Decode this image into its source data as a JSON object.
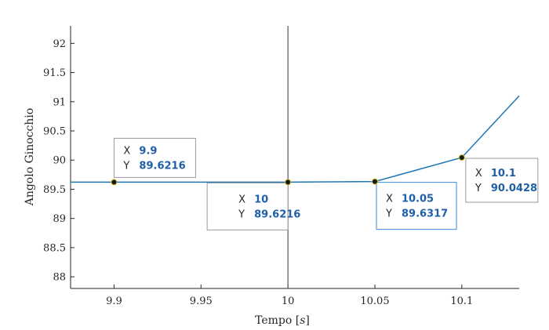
{
  "chart_data": {
    "type": "line",
    "title": "",
    "xlabel": "Tempo [s]",
    "xlabel_parts": {
      "prefix": "Tempo [",
      "unit": "s",
      "suffix": "]"
    },
    "ylabel": "Angolo Ginocchio",
    "xlim": [
      9.875,
      10.133
    ],
    "ylim": [
      87.8,
      92.3
    ],
    "x_ticks": [
      "9.9",
      "9.95",
      "10",
      "10.05",
      "10.1"
    ],
    "x_tick_values": [
      9.9,
      9.95,
      10.0,
      10.05,
      10.1
    ],
    "y_ticks": [
      "88",
      "88.5",
      "89",
      "89.5",
      "90",
      "90.5",
      "91",
      "91.5",
      "92"
    ],
    "y_tick_values": [
      88,
      88.5,
      89,
      89.5,
      90,
      90.5,
      91,
      91.5,
      92
    ],
    "grid": false,
    "line_color": "#1f77b4",
    "series": [
      {
        "x": [
          9.875,
          9.9,
          9.95,
          10.0,
          10.05,
          10.1,
          10.133
        ],
        "values": [
          89.6216,
          89.6216,
          89.6216,
          89.6216,
          89.6317,
          90.0428,
          91.1
        ]
      }
    ],
    "vertical_line_x": 10.0,
    "datatips": [
      {
        "x_key": "X",
        "y_key": "Y",
        "x_value": "9.9",
        "y_value": "89.6216",
        "x": 9.9,
        "y": 89.6216,
        "highlighted": false
      },
      {
        "x_key": "X",
        "y_key": "Y",
        "x_value": "10",
        "y_value": "89.6216",
        "x": 10.0,
        "y": 89.6216,
        "highlighted": false
      },
      {
        "x_key": "X",
        "y_key": "Y",
        "x_value": "10.05",
        "y_value": "89.6317",
        "x": 10.05,
        "y": 89.6317,
        "highlighted": true
      },
      {
        "x_key": "X",
        "y_key": "Y",
        "x_value": "10.1",
        "y_value": "90.0428",
        "x": 10.1,
        "y": 90.0428,
        "highlighted": false
      }
    ]
  }
}
